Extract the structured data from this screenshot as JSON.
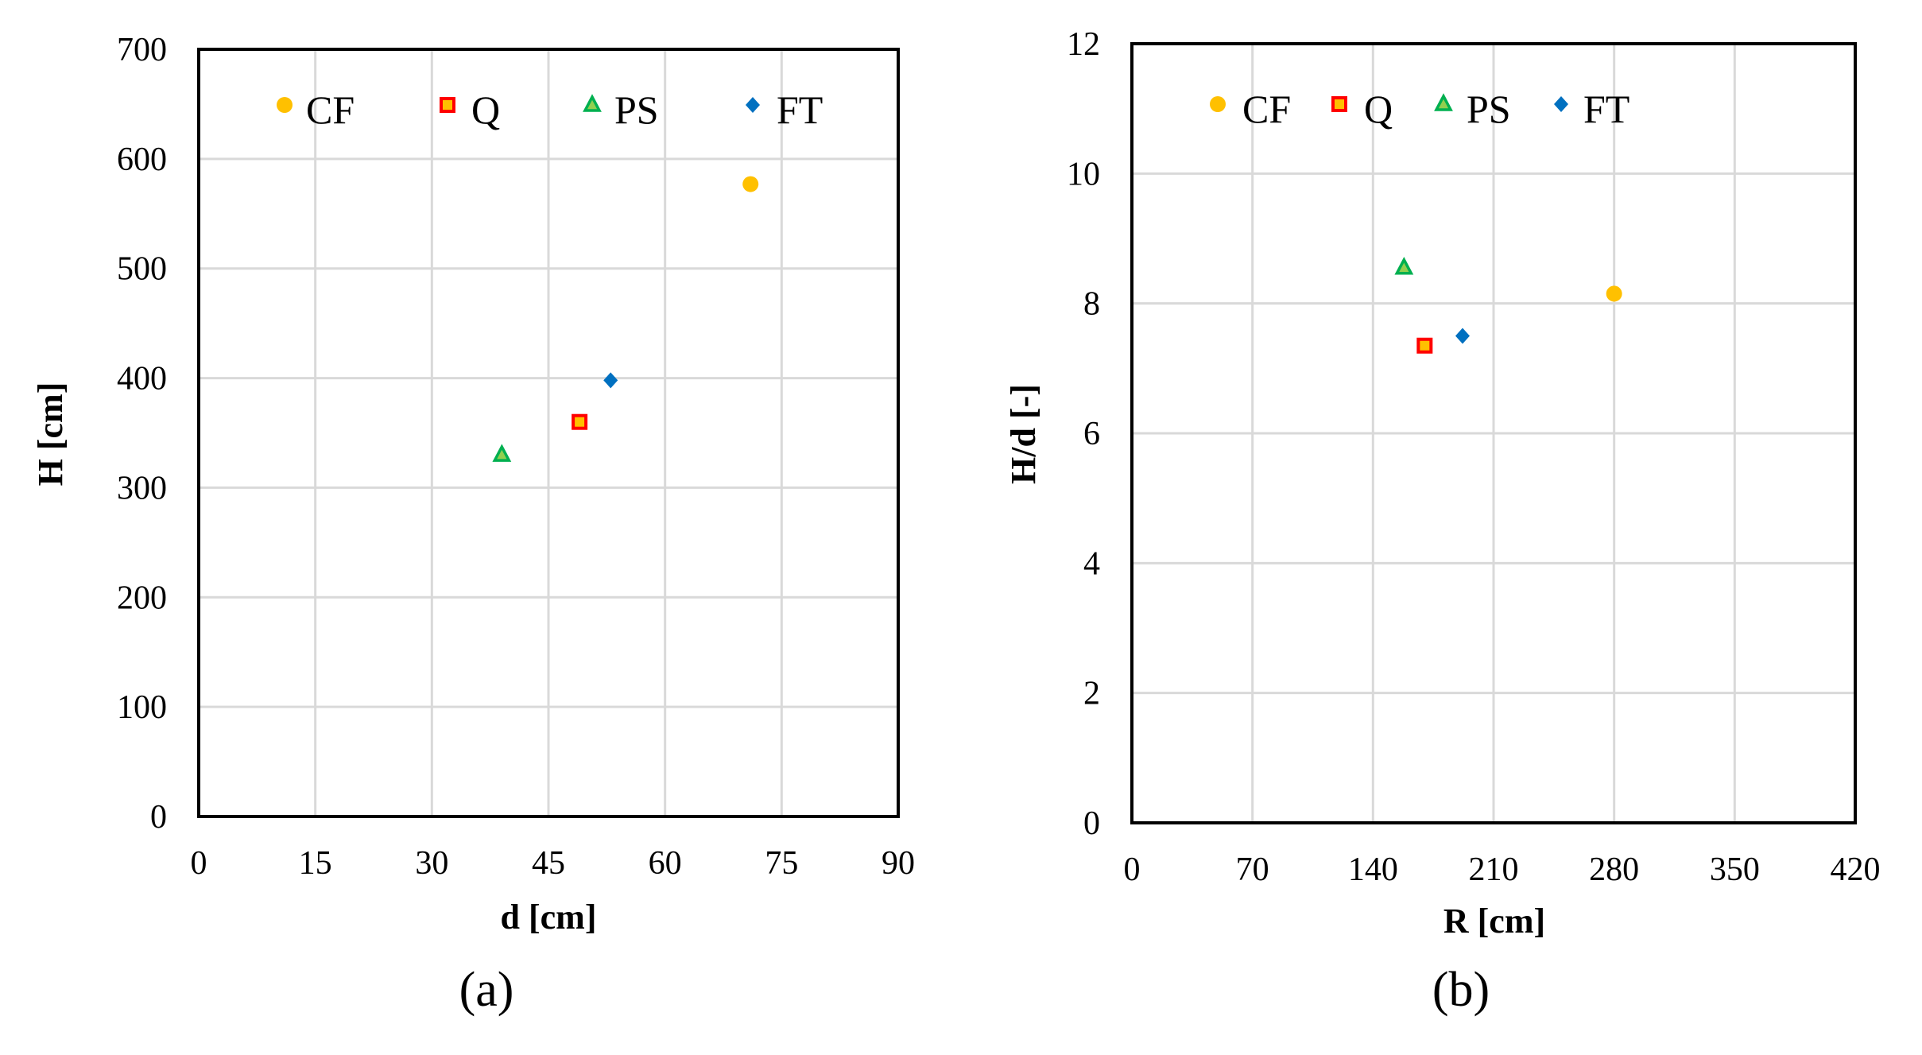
{
  "chart_data": [
    {
      "type": "scatter",
      "panel_label": "(a)",
      "xlabel": "d [cm]",
      "ylabel": "H [cm]",
      "xlim": [
        0,
        90
      ],
      "ylim": [
        0,
        700
      ],
      "x_ticks": [
        "0",
        "15",
        "30",
        "45",
        "60",
        "75",
        "90"
      ],
      "y_ticks": [
        "0",
        "100",
        "200",
        "300",
        "400",
        "500",
        "600",
        "700"
      ],
      "grid": true,
      "legend": {
        "placement": "top",
        "entries": [
          "CF",
          "Q",
          "PS",
          "FT"
        ]
      },
      "series": [
        {
          "name": "CF",
          "marker": "circle",
          "color": "#FFC000",
          "x": [
            71
          ],
          "y": [
            577
          ]
        },
        {
          "name": "Q",
          "marker": "square",
          "color": "#FF0000",
          "x": [
            49
          ],
          "y": [
            360
          ]
        },
        {
          "name": "PS",
          "marker": "triangle",
          "color": "#00B050",
          "x": [
            39
          ],
          "y": [
            330
          ]
        },
        {
          "name": "FT",
          "marker": "diamond",
          "color": "#0070C0",
          "x": [
            53
          ],
          "y": [
            398
          ]
        }
      ]
    },
    {
      "type": "scatter",
      "panel_label": "(b)",
      "xlabel": "R [cm]",
      "ylabel": "H/d [-]",
      "xlim": [
        0,
        420
      ],
      "ylim": [
        0,
        12
      ],
      "x_ticks": [
        "0",
        "70",
        "140",
        "210",
        "280",
        "350",
        "420"
      ],
      "y_ticks": [
        "0",
        "2",
        "4",
        "6",
        "8",
        "10",
        "12"
      ],
      "grid": true,
      "legend": {
        "placement": "top",
        "entries": [
          "CF",
          "Q",
          "PS",
          "FT"
        ]
      },
      "series": [
        {
          "name": "CF",
          "marker": "circle",
          "color": "#FFC000",
          "x": [
            280
          ],
          "y": [
            8.15
          ]
        },
        {
          "name": "Q",
          "marker": "square",
          "color": "#FF0000",
          "x": [
            170
          ],
          "y": [
            7.35
          ]
        },
        {
          "name": "PS",
          "marker": "triangle",
          "color": "#00B050",
          "x": [
            158
          ],
          "y": [
            8.55
          ]
        },
        {
          "name": "FT",
          "marker": "diamond",
          "color": "#0070C0",
          "x": [
            192
          ],
          "y": [
            7.5
          ]
        }
      ]
    }
  ]
}
